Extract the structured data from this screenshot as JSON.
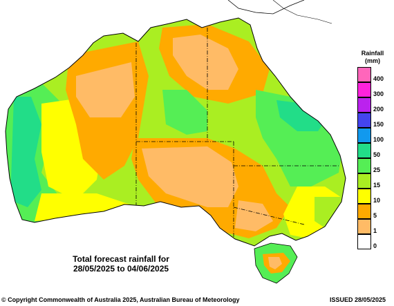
{
  "legend": {
    "title_line1": "Rainfall",
    "title_line2": "(mm)",
    "items": [
      {
        "label": "400",
        "color": "#ff66bb"
      },
      {
        "label": "300",
        "color": "#ff22dd"
      },
      {
        "label": "200",
        "color": "#bb22ee"
      },
      {
        "label": "150",
        "color": "#4444ee"
      },
      {
        "label": "100",
        "color": "#1199ee"
      },
      {
        "label": "50",
        "color": "#22dd88"
      },
      {
        "label": "25",
        "color": "#55ee55"
      },
      {
        "label": "15",
        "color": "#aaee22"
      },
      {
        "label": "10",
        "color": "#ffff00"
      },
      {
        "label": "5",
        "color": "#ffaa00"
      },
      {
        "label": "1",
        "color": "#ffbb66"
      },
      {
        "label": "0",
        "color": "#ffffff"
      }
    ]
  },
  "caption": {
    "line1": "Total forecast rainfall for",
    "line2": "28/05/2025 to 04/06/2025"
  },
  "footer": {
    "copyright": "© Copyright Commonwealth of Australia 2025, Australian Bureau of Meteorology",
    "issued": "ISSUED 28/05/2025"
  }
}
